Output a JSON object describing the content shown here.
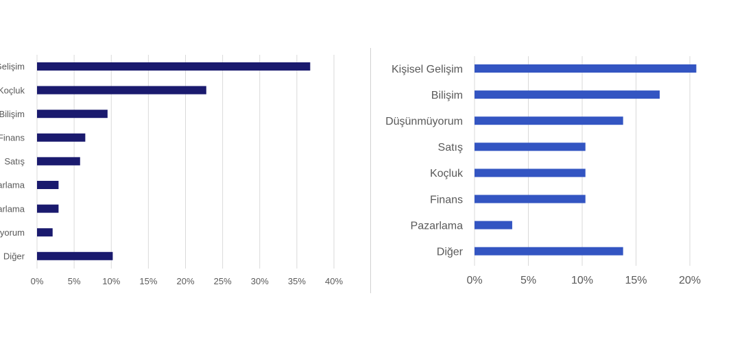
{
  "colors": {
    "left_bars": "#1a1a6e",
    "right_bars": "#3355c2",
    "grid": "#d9d9d9",
    "text": "#595959"
  },
  "chart_data": [
    {
      "type": "bar",
      "orientation": "horizontal",
      "categories": [
        "Gelişim",
        "Koçluk",
        "Bilişim",
        "Finans",
        "Satış",
        "arlama",
        "arlama",
        "yorum",
        "Diğer"
      ],
      "values": [
        36.8,
        22.8,
        9.5,
        6.5,
        5.8,
        2.9,
        2.9,
        2.1,
        10.2
      ],
      "x_ticks": [
        "0%",
        "5%",
        "10%",
        "15%",
        "20%",
        "25%",
        "30%",
        "35%",
        "40%"
      ],
      "xlim": [
        0,
        40
      ],
      "grid": true
    },
    {
      "type": "bar",
      "orientation": "horizontal",
      "categories": [
        "Kişisel Gelişim",
        "Bilişim",
        "Düşünmüyorum",
        "Satış",
        "Koçluk",
        "Finans",
        "Pazarlama",
        "Diğer"
      ],
      "values": [
        20.6,
        17.2,
        13.8,
        10.3,
        10.3,
        10.3,
        3.5,
        13.8
      ],
      "x_ticks": [
        "0%",
        "5%",
        "10%",
        "15%",
        "20%"
      ],
      "xlim": [
        0,
        20
      ],
      "grid": true
    }
  ]
}
